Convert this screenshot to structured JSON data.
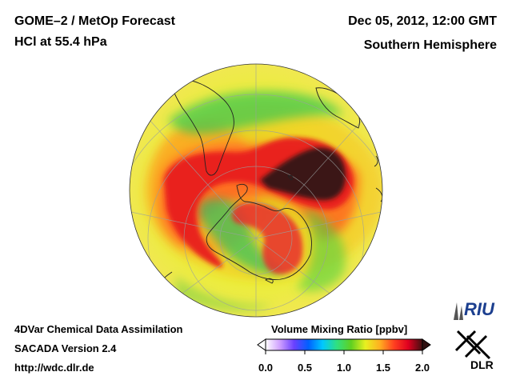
{
  "header": {
    "title_line1": "GOME–2 / MetOp Forecast",
    "title_line2": "HCl at 55.4 hPa",
    "date": "Dec 05, 2012, 12:00 GMT",
    "hemisphere": "Southern Hemisphere"
  },
  "footer": {
    "line1": "4DVar Chemical Data Assimilation",
    "line2": "SACADA Version 2.4",
    "line3": "http://wdc.dlr.de"
  },
  "colorbar": {
    "title": "Volume Mixing Ratio [ppbv]",
    "ticks": [
      "0.0",
      "0.5",
      "1.0",
      "1.5",
      "2.0"
    ],
    "range": [
      0.0,
      2.0
    ],
    "colors": [
      "#ffffff",
      "#cfa0ff",
      "#6a40ff",
      "#0060ff",
      "#00c8ff",
      "#30e080",
      "#60d020",
      "#e8f020",
      "#ffb020",
      "#ff4020",
      "#e00020",
      "#401010"
    ]
  },
  "logos": {
    "riu": "RIU",
    "dlr": "DLR"
  }
}
